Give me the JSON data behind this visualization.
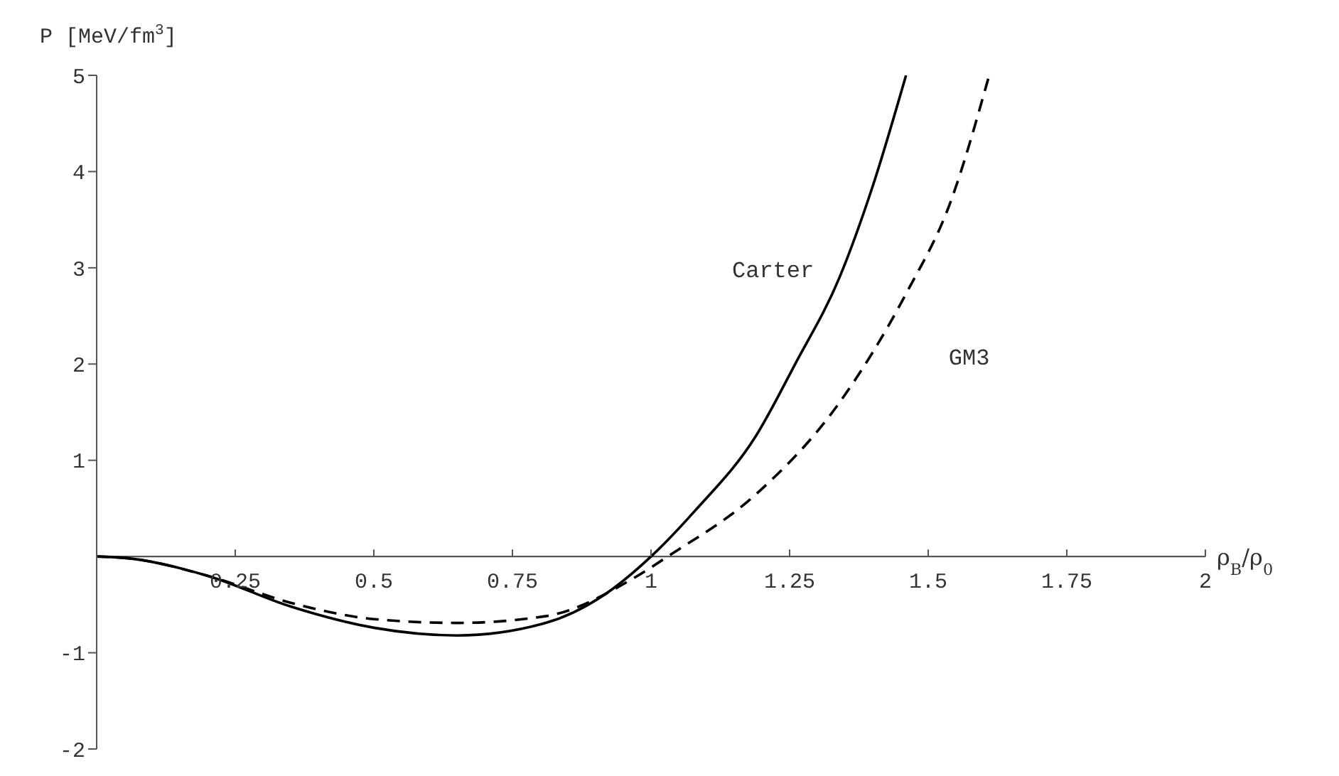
{
  "chart_data": {
    "type": "line",
    "xlabel": "ρ$_{B}$/ρ$_{0}$",
    "ylabel": "P [MeV/fm$^{3}$]",
    "xlim": [
      0,
      2
    ],
    "xticks": [
      0.25,
      0.5,
      0.75,
      1,
      1.25,
      1.5,
      1.75,
      2
    ],
    "ylim": [
      -2,
      5
    ],
    "yticks": [
      -2,
      -1,
      1,
      2,
      3,
      4,
      5
    ],
    "marker": "none",
    "series": [
      {
        "name": "Carter",
        "color": "#000000",
        "line_style": "solid",
        "x": [
          0,
          0.06,
          0.2,
          0.35,
          0.5,
          0.65,
          0.81,
          0.91,
          1.0,
          1.08,
          1.19,
          1.26,
          1.34,
          1.4,
          1.46
        ],
        "values": [
          0,
          -0.02,
          -0.2,
          -0.52,
          -0.74,
          -0.82,
          -0.69,
          -0.42,
          0,
          0.48,
          1.26,
          2.0,
          2.9,
          3.85,
          5
        ]
      },
      {
        "name": "GM3",
        "color": "#000000",
        "line_style": "dashed",
        "x": [
          0,
          0.06,
          0.2,
          0.35,
          0.5,
          0.65,
          0.81,
          0.97,
          1.03,
          1.19,
          1.34,
          1.46,
          1.54,
          1.61
        ],
        "values": [
          0,
          -0.02,
          -0.2,
          -0.48,
          -0.65,
          -0.69,
          -0.62,
          -0.22,
          0,
          0.65,
          1.6,
          2.73,
          3.68,
          5
        ]
      }
    ]
  }
}
